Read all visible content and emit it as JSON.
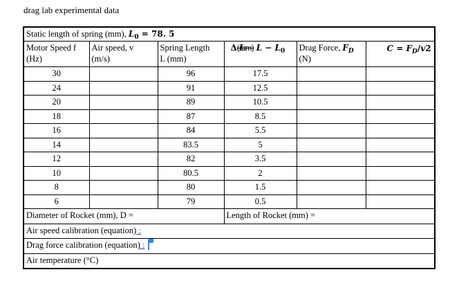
{
  "colors": {
    "ink": "#000000",
    "border": "#000000",
    "insert_blue": "#2430CE",
    "caret_blue": "#2E85F1",
    "page_bg": "#ffffff"
  },
  "document": {
    "title": "drag lab experimental data"
  },
  "table": {
    "static_row": {
      "label": "Static length of spring (mm),",
      "var": "L",
      "sub": "0",
      "value": " = 78. 5"
    },
    "headers": {
      "motor": {
        "line1": "Motor Speed f",
        "line2": "(Hz)"
      },
      "air": {
        "line1": "Air speed, v",
        "line2": "(m/s)"
      },
      "spring": {
        "line1": "Spring Length",
        "line2": "L (mm)"
      },
      "delta": {
        "lead": "Δ",
        "overlap_base": "(mm)",
        "overlap_over": "L",
        "expr": "L − L",
        "sub": "0"
      },
      "drag": {
        "line1": "Drag Force, ",
        "var": "F",
        "sub": "D",
        "line2": "(N)"
      },
      "coeff": {
        "var1": "C",
        "eq": " = ",
        "var2": "F",
        "sub": "D",
        "slash": "/",
        "var3": "v",
        "num": "2"
      }
    },
    "row_keys": [
      "f",
      "v",
      "L",
      "dL",
      "Fd",
      "C"
    ],
    "rows": [
      {
        "f": "30",
        "L": "96",
        "dL": "17.5"
      },
      {
        "f": "24",
        "L": "91",
        "dL": "12.5"
      },
      {
        "f": "20",
        "L": "89",
        "dL": "10.5"
      },
      {
        "f": "18",
        "L": "87",
        "dL": "8.5"
      },
      {
        "f": "16",
        "L": "84",
        "dL": "5.5"
      },
      {
        "f": "14",
        "L": "83.5",
        "dL": "5"
      },
      {
        "f": "12",
        "L": "82",
        "dL": "3.5"
      },
      {
        "f": "10",
        "L": "80.5",
        "dL": "2"
      },
      {
        "f": "8",
        "L": "80",
        "dL": "1.5"
      },
      {
        "f": "6",
        "L": "79",
        "dL": "0.5"
      }
    ],
    "footer": {
      "diameter": "Diameter of Rocket (mm), D =",
      "length": "Length of Rocket (mm) =",
      "air_speed_cal": {
        "text": "Air speed calibration (equation",
        "paren": ")",
        "colon": " :"
      },
      "drag_force_cal": {
        "text": "Drag force calibration (equation",
        "paren": ")",
        "colon": " :"
      },
      "air_temp": "Air temperature (°C)"
    }
  }
}
